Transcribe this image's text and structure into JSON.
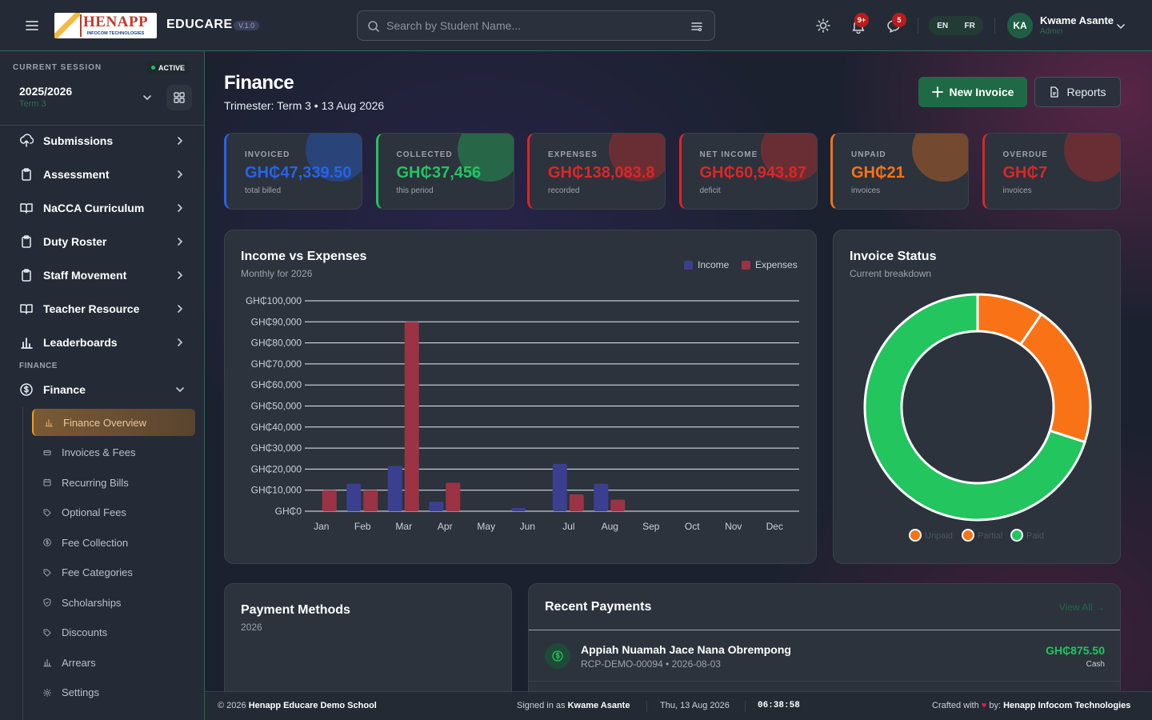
{
  "topbar": {
    "logo_text": "HENAPP",
    "logo_sub": "INFOCOM TECHNOLOGIES",
    "brand": "EDUCARE",
    "version": "V.1.0",
    "search_placeholder": "Search by Student Name...",
    "notif_badge": "9+",
    "msg_badge": "5",
    "lang_en": "EN",
    "lang_fr": "FR",
    "avatar": "KA",
    "user_name": "Kwame Asante",
    "user_role": "Admin"
  },
  "sidebar": {
    "session_label": "CURRENT SESSION",
    "session_status": "ACTIVE",
    "session_year": "2025/2026",
    "session_term": "Term 3",
    "items": [
      {
        "label": "Submissions",
        "icon": "upload-icon"
      },
      {
        "label": "Assessment",
        "icon": "clipboard-icon"
      },
      {
        "label": "NaCCA Curriculum",
        "icon": "book-icon"
      },
      {
        "label": "Duty Roster",
        "icon": "clipboard-icon"
      },
      {
        "label": "Staff Movement",
        "icon": "clipboard-icon"
      },
      {
        "label": "Teacher Resource",
        "icon": "book-icon"
      },
      {
        "label": "Leaderboards",
        "icon": "bar-chart-icon"
      }
    ],
    "section": "FINANCE",
    "finance": "Finance",
    "sub": [
      {
        "label": "Finance Overview",
        "icon": "bar-chart-icon"
      },
      {
        "label": "Invoices & Fees",
        "icon": "receipt-icon"
      },
      {
        "label": "Recurring Bills",
        "icon": "calendar-icon"
      },
      {
        "label": "Optional Fees",
        "icon": "tag-icon"
      },
      {
        "label": "Fee Collection",
        "icon": "dollar-icon"
      },
      {
        "label": "Fee Categories",
        "icon": "tag-icon"
      },
      {
        "label": "Scholarships",
        "icon": "shield-icon"
      },
      {
        "label": "Discounts",
        "icon": "tag-icon"
      },
      {
        "label": "Arrears",
        "icon": "bar-chart-icon"
      },
      {
        "label": "Settings",
        "icon": "gear-icon"
      }
    ]
  },
  "page": {
    "title": "Finance",
    "subtitle": "Trimester: Term 3 • 13 Aug 2026",
    "new_invoice": "New Invoice",
    "reports": "Reports"
  },
  "stats": [
    {
      "label": "INVOICED",
      "value": "GH₵47,339.50",
      "sub": "total billed",
      "color": "#2563eb"
    },
    {
      "label": "COLLECTED",
      "value": "GH₵37,456",
      "sub": "this period",
      "color": "#22c55e"
    },
    {
      "label": "EXPENSES",
      "value": "GH₵138,083.8",
      "sub": "recorded",
      "color": "#dc2626"
    },
    {
      "label": "NET INCOME",
      "value": "GH₵60,943.87",
      "sub": "deficit",
      "color": "#dc2626"
    },
    {
      "label": "UNPAID",
      "value": "GH₵21",
      "sub": "invoices",
      "color": "#f97316"
    },
    {
      "label": "OVERDUE",
      "value": "GH₵7",
      "sub": "invoices",
      "color": "#dc2626"
    }
  ],
  "income_chart": {
    "title": "Income vs Expenses",
    "subtitle": "Monthly for 2026",
    "legend_income": "Income",
    "legend_expenses": "Expenses"
  },
  "chart_data": {
    "type": "bar",
    "categories": [
      "Jan",
      "Feb",
      "Mar",
      "Apr",
      "May",
      "Jun",
      "Jul",
      "Aug",
      "Sep",
      "Oct",
      "Nov",
      "Dec"
    ],
    "series": [
      {
        "name": "Income",
        "color": "#3b3f8f",
        "values": [
          0,
          13000,
          21500,
          4500,
          0,
          1500,
          22500,
          13000,
          0,
          0,
          0,
          0
        ]
      },
      {
        "name": "Expenses",
        "color": "#9b3344",
        "values": [
          10000,
          10000,
          90000,
          13500,
          0,
          0,
          8000,
          5500,
          0,
          0,
          0,
          0
        ]
      }
    ],
    "y_ticks": [
      "GH₵100,000",
      "GH₵90,000",
      "GH₵80,000",
      "GH₵70,000",
      "GH₵60,000",
      "GH₵50,000",
      "GH₵40,000",
      "GH₵30,000",
      "GH₵20,000",
      "GH₵10,000",
      "GH₵0"
    ],
    "ylim": [
      0,
      100000
    ]
  },
  "invoice_status": {
    "title": "Invoice Status",
    "subtitle": "Current breakdown",
    "legend": [
      "Unpaid",
      "Partial",
      "Paid"
    ],
    "values": [
      0,
      30,
      70
    ],
    "colors": [
      "#f97316",
      "#f97316",
      "#22c55e"
    ]
  },
  "payment_methods": {
    "title": "Payment Methods",
    "subtitle": "2026"
  },
  "recent": {
    "title": "Recent Payments",
    "view_all": "View All →",
    "rows": [
      {
        "name": "Appiah Nuamah Jace Nana Obrempong",
        "ref": "RCP-DEMO-00094 • 2026-08-03",
        "amount": "GH₵875.50",
        "method": "Cash"
      }
    ]
  },
  "footer": {
    "copy": "© 2026",
    "school": "Henapp Educare Demo School",
    "signed_prefix": "Signed in as",
    "signed_user": "Kwame Asante",
    "date": "Thu, 13 Aug 2026",
    "time": "06:38:58",
    "crafted": "Crafted with",
    "by": "by:",
    "company": "Henapp Infocom Technologies"
  }
}
